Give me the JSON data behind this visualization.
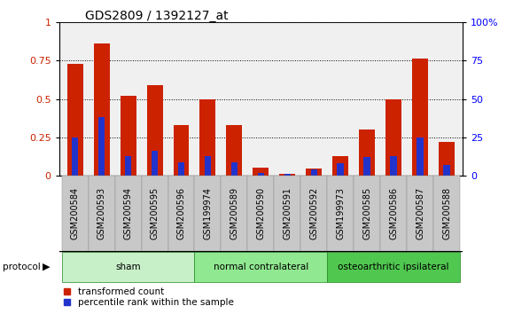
{
  "title": "GDS2809 / 1392127_at",
  "samples": [
    "GSM200584",
    "GSM200593",
    "GSM200594",
    "GSM200595",
    "GSM200596",
    "GSM199974",
    "GSM200589",
    "GSM200590",
    "GSM200591",
    "GSM200592",
    "GSM199973",
    "GSM200585",
    "GSM200586",
    "GSM200587",
    "GSM200588"
  ],
  "red_values": [
    0.73,
    0.86,
    0.52,
    0.59,
    0.33,
    0.5,
    0.33,
    0.055,
    0.015,
    0.05,
    0.13,
    0.3,
    0.5,
    0.76,
    0.22
  ],
  "blue_values": [
    0.25,
    0.38,
    0.13,
    0.16,
    0.09,
    0.13,
    0.09,
    0.02,
    0.015,
    0.04,
    0.08,
    0.12,
    0.13,
    0.25,
    0.07
  ],
  "groups": [
    {
      "label": "sham",
      "start": 0,
      "end": 5,
      "color": "#c8f0c8"
    },
    {
      "label": "normal contralateral",
      "start": 5,
      "end": 10,
      "color": "#90e890"
    },
    {
      "label": "osteoarthritic ipsilateral",
      "start": 10,
      "end": 15,
      "color": "#50c850"
    }
  ],
  "protocol_label": "protocol",
  "ylim": [
    0,
    1.0
  ],
  "y2lim": [
    0,
    100
  ],
  "yticks_left": [
    0,
    0.25,
    0.5,
    0.75,
    1.0
  ],
  "yticks_right": [
    0,
    25,
    50,
    75,
    100
  ],
  "bar_color": "#cc2200",
  "dot_color": "#2233cc",
  "tick_bg_color": "#c8c8c8",
  "plot_bg_color": "#f0f0f0",
  "title_fontsize": 10,
  "tick_fontsize": 7,
  "bar_width": 0.6,
  "blue_bar_width": 0.25,
  "legend_red": "transformed count",
  "legend_blue": "percentile rank within the sample"
}
